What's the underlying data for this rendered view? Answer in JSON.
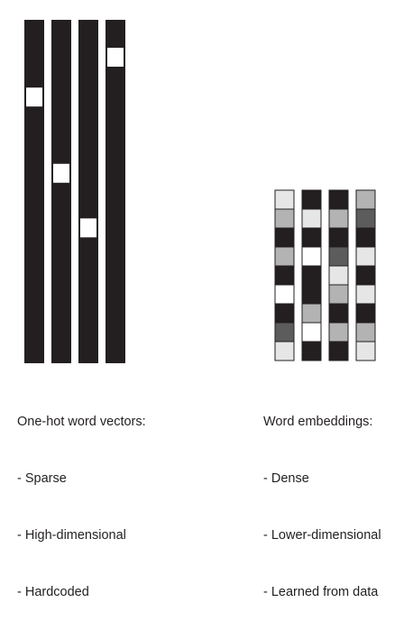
{
  "colors": {
    "bar": "#231f20",
    "background": "#ffffff",
    "cell_border": "#231f20",
    "shade_levels": {
      "black": "#231f20",
      "white": "#ffffff",
      "light": "#e6e6e6",
      "mid": "#b3b3b3",
      "dark": "#5c5c5c"
    }
  },
  "one_hot": {
    "description_title": "One-hot word vectors:",
    "properties": [
      "- Sparse",
      "- High-dimensional",
      "- Hardcoded"
    ],
    "vectors": [
      {
        "name": "one-hot-vector-1",
        "hot_index_fraction": 0.196
      },
      {
        "name": "one-hot-vector-2",
        "hot_index_fraction": 0.418
      },
      {
        "name": "one-hot-vector-3",
        "hot_index_fraction": 0.577
      },
      {
        "name": "one-hot-vector-4",
        "hot_index_fraction": 0.08
      }
    ]
  },
  "embeddings": {
    "description_title": "Word embeddings:",
    "properties": [
      "- Dense",
      "- Lower-dimensional",
      "- Learned from data"
    ],
    "vectors": [
      {
        "name": "embedding-vector-1",
        "cells": [
          "light",
          "mid",
          "black",
          "mid",
          "black",
          "white",
          "black",
          "dark",
          "light"
        ]
      },
      {
        "name": "embedding-vector-2",
        "cells": [
          "black",
          "light",
          "black",
          "white",
          "black",
          "black",
          "mid",
          "white",
          "black"
        ]
      },
      {
        "name": "embedding-vector-3",
        "cells": [
          "black",
          "mid",
          "black",
          "dark",
          "light",
          "mid",
          "black",
          "mid",
          "black"
        ]
      },
      {
        "name": "embedding-vector-4",
        "cells": [
          "mid",
          "dark",
          "black",
          "light",
          "black",
          "light",
          "black",
          "mid",
          "light"
        ]
      }
    ]
  }
}
